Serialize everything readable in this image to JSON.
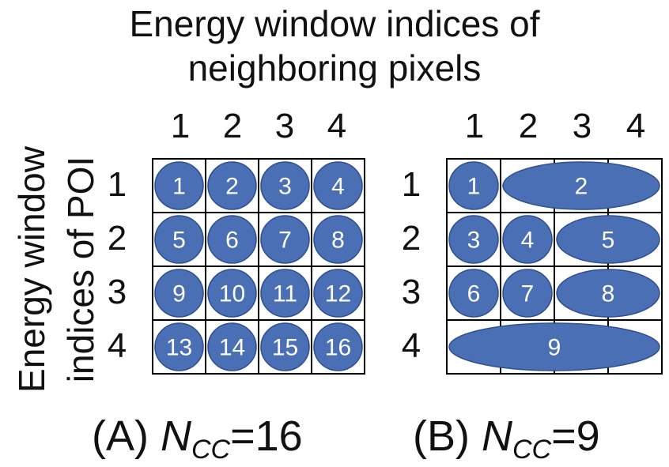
{
  "title": {
    "line1": "Energy window indices of",
    "line2": "neighboring pixels"
  },
  "ylabel": {
    "line1": "Energy window",
    "line2": "indices of POI"
  },
  "column_labels": [
    "1",
    "2",
    "3",
    "4"
  ],
  "row_labels": [
    "1",
    "2",
    "3",
    "4"
  ],
  "colors": {
    "cell_fill": "#4a6fb5",
    "cell_stroke": "#2f4f8f",
    "grid": "#000000"
  },
  "panels": [
    {
      "label": "(A) ",
      "n_symbol": "N",
      "n_sub": "CC",
      "n_value": "=16",
      "cells": [
        {
          "id": "1",
          "row": 1,
          "col_start": 1,
          "col_end": 1
        },
        {
          "id": "2",
          "row": 1,
          "col_start": 2,
          "col_end": 2
        },
        {
          "id": "3",
          "row": 1,
          "col_start": 3,
          "col_end": 3
        },
        {
          "id": "4",
          "row": 1,
          "col_start": 4,
          "col_end": 4
        },
        {
          "id": "5",
          "row": 2,
          "col_start": 1,
          "col_end": 1
        },
        {
          "id": "6",
          "row": 2,
          "col_start": 2,
          "col_end": 2
        },
        {
          "id": "7",
          "row": 2,
          "col_start": 3,
          "col_end": 3
        },
        {
          "id": "8",
          "row": 2,
          "col_start": 4,
          "col_end": 4
        },
        {
          "id": "9",
          "row": 3,
          "col_start": 1,
          "col_end": 1
        },
        {
          "id": "10",
          "row": 3,
          "col_start": 2,
          "col_end": 2
        },
        {
          "id": "11",
          "row": 3,
          "col_start": 3,
          "col_end": 3
        },
        {
          "id": "12",
          "row": 3,
          "col_start": 4,
          "col_end": 4
        },
        {
          "id": "13",
          "row": 4,
          "col_start": 1,
          "col_end": 1
        },
        {
          "id": "14",
          "row": 4,
          "col_start": 2,
          "col_end": 2
        },
        {
          "id": "15",
          "row": 4,
          "col_start": 3,
          "col_end": 3
        },
        {
          "id": "16",
          "row": 4,
          "col_start": 4,
          "col_end": 4
        }
      ]
    },
    {
      "label": "(B) ",
      "n_symbol": "N",
      "n_sub": "CC",
      "n_value": "=9",
      "cells": [
        {
          "id": "1",
          "row": 1,
          "col_start": 1,
          "col_end": 1
        },
        {
          "id": "2",
          "row": 1,
          "col_start": 2,
          "col_end": 4
        },
        {
          "id": "3",
          "row": 2,
          "col_start": 1,
          "col_end": 1
        },
        {
          "id": "4",
          "row": 2,
          "col_start": 2,
          "col_end": 2
        },
        {
          "id": "5",
          "row": 2,
          "col_start": 3,
          "col_end": 4
        },
        {
          "id": "6",
          "row": 3,
          "col_start": 1,
          "col_end": 1
        },
        {
          "id": "7",
          "row": 3,
          "col_start": 2,
          "col_end": 2
        },
        {
          "id": "8",
          "row": 3,
          "col_start": 3,
          "col_end": 4
        },
        {
          "id": "9",
          "row": 4,
          "col_start": 1,
          "col_end": 4
        }
      ]
    }
  ]
}
